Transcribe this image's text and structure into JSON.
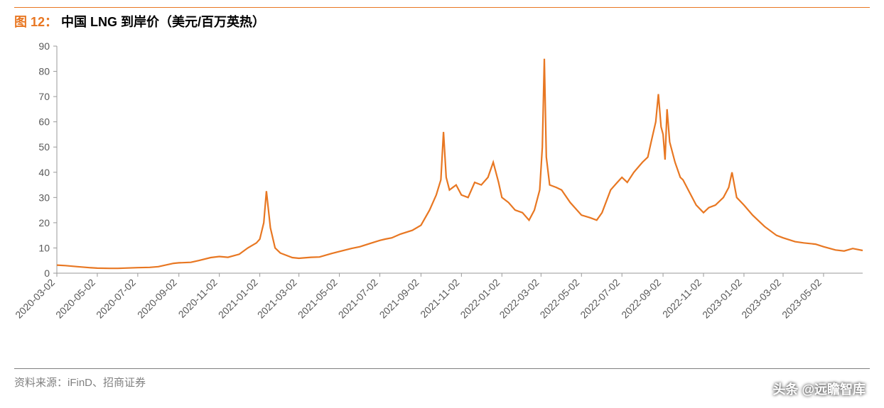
{
  "title": {
    "figure_label": "图 12：",
    "figure_label_color": "#e87722",
    "text": "中国 LNG 到岸价（美元/百万英热）",
    "text_color": "#000000",
    "rule_color": "#e87722",
    "font_size": 18
  },
  "chart": {
    "type": "line",
    "background_color": "#ffffff",
    "series_color": "#e87722",
    "line_width": 2.2,
    "ylim": [
      0,
      90
    ],
    "ytick_step": 10,
    "xlim_dates": [
      "2020-03-02",
      "2023-06-30"
    ],
    "grid": false,
    "grid_color": "#d9d9d9",
    "axis_color": "#999999",
    "tick_font_size": 14,
    "tick_font_color": "#595959",
    "xlabel_rotation_deg": -45,
    "x_ticks": [
      "2020-03-02",
      "2020-05-02",
      "2020-07-02",
      "2020-09-02",
      "2020-11-02",
      "2021-01-02",
      "2021-03-02",
      "2021-05-02",
      "2021-07-02",
      "2021-09-02",
      "2021-11-02",
      "2022-01-02",
      "2022-03-02",
      "2022-05-02",
      "2022-07-02",
      "2022-09-02",
      "2022-11-02",
      "2023-01-02",
      "2023-03-02",
      "2023-05-02"
    ],
    "y_ticks": [
      0,
      10,
      20,
      30,
      40,
      50,
      60,
      70,
      80,
      90
    ],
    "data": [
      {
        "date": "2020-03-02",
        "v": 3.2
      },
      {
        "date": "2020-03-15",
        "v": 3.0
      },
      {
        "date": "2020-04-02",
        "v": 2.6
      },
      {
        "date": "2020-04-20",
        "v": 2.2
      },
      {
        "date": "2020-05-02",
        "v": 2.0
      },
      {
        "date": "2020-05-20",
        "v": 1.9
      },
      {
        "date": "2020-06-02",
        "v": 1.9
      },
      {
        "date": "2020-07-02",
        "v": 2.2
      },
      {
        "date": "2020-07-20",
        "v": 2.3
      },
      {
        "date": "2020-08-02",
        "v": 2.6
      },
      {
        "date": "2020-08-25",
        "v": 3.9
      },
      {
        "date": "2020-09-02",
        "v": 4.1
      },
      {
        "date": "2020-09-20",
        "v": 4.3
      },
      {
        "date": "2020-10-02",
        "v": 5.0
      },
      {
        "date": "2020-10-20",
        "v": 6.2
      },
      {
        "date": "2020-11-02",
        "v": 6.6
      },
      {
        "date": "2020-11-15",
        "v": 6.3
      },
      {
        "date": "2020-12-02",
        "v": 7.5
      },
      {
        "date": "2020-12-15",
        "v": 10.0
      },
      {
        "date": "2020-12-28",
        "v": 12.0
      },
      {
        "date": "2021-01-02",
        "v": 13.5
      },
      {
        "date": "2021-01-08",
        "v": 20.0
      },
      {
        "date": "2021-01-12",
        "v": 32.5
      },
      {
        "date": "2021-01-18",
        "v": 18.0
      },
      {
        "date": "2021-01-25",
        "v": 10.0
      },
      {
        "date": "2021-02-02",
        "v": 8.0
      },
      {
        "date": "2021-02-20",
        "v": 6.2
      },
      {
        "date": "2021-03-02",
        "v": 5.9
      },
      {
        "date": "2021-03-20",
        "v": 6.3
      },
      {
        "date": "2021-04-02",
        "v": 6.4
      },
      {
        "date": "2021-04-20",
        "v": 7.8
      },
      {
        "date": "2021-05-02",
        "v": 8.6
      },
      {
        "date": "2021-05-20",
        "v": 9.8
      },
      {
        "date": "2021-06-02",
        "v": 10.5
      },
      {
        "date": "2021-06-20",
        "v": 12.0
      },
      {
        "date": "2021-07-02",
        "v": 13.0
      },
      {
        "date": "2021-07-10",
        "v": 13.5
      },
      {
        "date": "2021-07-20",
        "v": 14.0
      },
      {
        "date": "2021-08-02",
        "v": 15.5
      },
      {
        "date": "2021-08-20",
        "v": 17.0
      },
      {
        "date": "2021-09-02",
        "v": 19.0
      },
      {
        "date": "2021-09-15",
        "v": 25.0
      },
      {
        "date": "2021-09-25",
        "v": 31.0
      },
      {
        "date": "2021-10-02",
        "v": 37.0
      },
      {
        "date": "2021-10-06",
        "v": 56.0
      },
      {
        "date": "2021-10-10",
        "v": 38.0
      },
      {
        "date": "2021-10-15",
        "v": 33.0
      },
      {
        "date": "2021-10-25",
        "v": 35.0
      },
      {
        "date": "2021-11-02",
        "v": 31.0
      },
      {
        "date": "2021-11-12",
        "v": 30.0
      },
      {
        "date": "2021-11-22",
        "v": 36.0
      },
      {
        "date": "2021-12-02",
        "v": 35.0
      },
      {
        "date": "2021-12-12",
        "v": 38.0
      },
      {
        "date": "2021-12-20",
        "v": 44.0
      },
      {
        "date": "2021-12-28",
        "v": 36.0
      },
      {
        "date": "2022-01-02",
        "v": 30.0
      },
      {
        "date": "2022-01-12",
        "v": 28.0
      },
      {
        "date": "2022-01-22",
        "v": 25.0
      },
      {
        "date": "2022-02-02",
        "v": 24.0
      },
      {
        "date": "2022-02-12",
        "v": 21.0
      },
      {
        "date": "2022-02-20",
        "v": 25.0
      },
      {
        "date": "2022-02-28",
        "v": 33.0
      },
      {
        "date": "2022-03-04",
        "v": 50.0
      },
      {
        "date": "2022-03-07",
        "v": 85.0
      },
      {
        "date": "2022-03-10",
        "v": 46.0
      },
      {
        "date": "2022-03-15",
        "v": 35.0
      },
      {
        "date": "2022-03-25",
        "v": 34.0
      },
      {
        "date": "2022-04-02",
        "v": 33.0
      },
      {
        "date": "2022-04-15",
        "v": 28.0
      },
      {
        "date": "2022-05-02",
        "v": 23.0
      },
      {
        "date": "2022-05-15",
        "v": 22.0
      },
      {
        "date": "2022-05-25",
        "v": 21.0
      },
      {
        "date": "2022-06-02",
        "v": 24.0
      },
      {
        "date": "2022-06-15",
        "v": 33.0
      },
      {
        "date": "2022-06-25",
        "v": 36.0
      },
      {
        "date": "2022-07-02",
        "v": 38.0
      },
      {
        "date": "2022-07-10",
        "v": 36.0
      },
      {
        "date": "2022-07-20",
        "v": 40.0
      },
      {
        "date": "2022-08-02",
        "v": 44.0
      },
      {
        "date": "2022-08-10",
        "v": 46.0
      },
      {
        "date": "2022-08-15",
        "v": 52.0
      },
      {
        "date": "2022-08-22",
        "v": 60.0
      },
      {
        "date": "2022-08-26",
        "v": 71.0
      },
      {
        "date": "2022-08-30",
        "v": 58.0
      },
      {
        "date": "2022-09-02",
        "v": 55.0
      },
      {
        "date": "2022-09-05",
        "v": 45.0
      },
      {
        "date": "2022-09-08",
        "v": 65.0
      },
      {
        "date": "2022-09-12",
        "v": 52.0
      },
      {
        "date": "2022-09-20",
        "v": 44.0
      },
      {
        "date": "2022-09-28",
        "v": 38.0
      },
      {
        "date": "2022-10-02",
        "v": 37.0
      },
      {
        "date": "2022-10-12",
        "v": 32.0
      },
      {
        "date": "2022-10-22",
        "v": 27.0
      },
      {
        "date": "2022-11-02",
        "v": 24.0
      },
      {
        "date": "2022-11-10",
        "v": 26.0
      },
      {
        "date": "2022-11-20",
        "v": 27.0
      },
      {
        "date": "2022-12-02",
        "v": 30.0
      },
      {
        "date": "2022-12-10",
        "v": 34.0
      },
      {
        "date": "2022-12-15",
        "v": 40.0
      },
      {
        "date": "2022-12-22",
        "v": 30.0
      },
      {
        "date": "2023-01-02",
        "v": 27.0
      },
      {
        "date": "2023-01-15",
        "v": 23.0
      },
      {
        "date": "2023-02-02",
        "v": 18.5
      },
      {
        "date": "2023-02-20",
        "v": 15.0
      },
      {
        "date": "2023-03-02",
        "v": 14.0
      },
      {
        "date": "2023-03-20",
        "v": 12.5
      },
      {
        "date": "2023-04-02",
        "v": 12.0
      },
      {
        "date": "2023-04-20",
        "v": 11.5
      },
      {
        "date": "2023-05-02",
        "v": 10.5
      },
      {
        "date": "2023-05-20",
        "v": 9.2
      },
      {
        "date": "2023-06-02",
        "v": 8.8
      },
      {
        "date": "2023-06-15",
        "v": 9.8
      },
      {
        "date": "2023-06-30",
        "v": 9.0
      }
    ]
  },
  "footer": {
    "source_label": "资料来源：iFinD、招商证券",
    "rule_color": "#808080",
    "text_color": "#808080",
    "font_size": 15
  },
  "watermark": {
    "text": "头条 @远瞻智库",
    "color": "#ffffff",
    "font_size": 18
  }
}
